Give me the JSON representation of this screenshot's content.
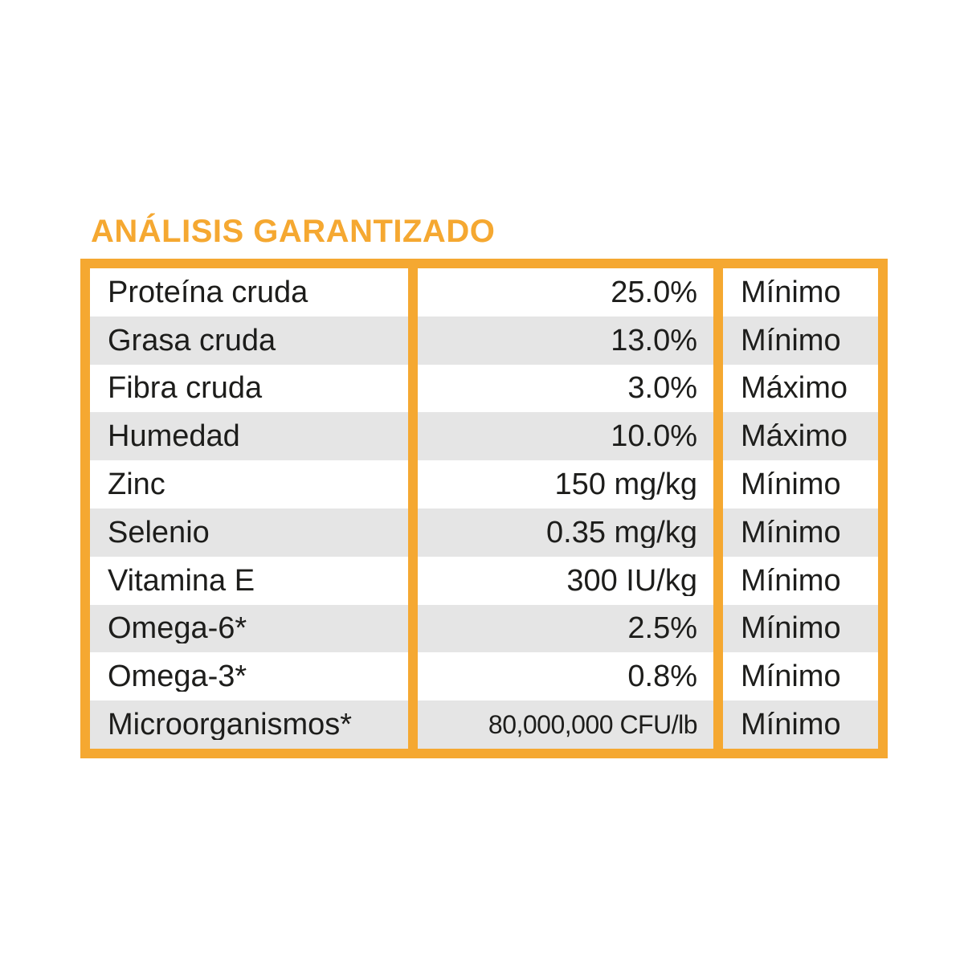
{
  "title": "ANÁLISIS GARANTIZADO",
  "colors": {
    "accent": "#F5A831",
    "row_alt": "#E5E5E5",
    "text": "#1D1D1B",
    "page_bg": "#FFFFFF"
  },
  "table": {
    "columns": [
      "nutrient",
      "value",
      "qualifier"
    ],
    "rows": [
      {
        "nutrient": "Proteína cruda",
        "value": "25.0%",
        "qualifier": "Mínimo"
      },
      {
        "nutrient": "Grasa cruda",
        "value": "13.0%",
        "qualifier": "Mínimo"
      },
      {
        "nutrient": "Fibra cruda",
        "value": "3.0%",
        "qualifier": "Máximo"
      },
      {
        "nutrient": "Humedad",
        "value": "10.0%",
        "qualifier": "Máximo"
      },
      {
        "nutrient": "Zinc",
        "value": "150 mg/kg",
        "qualifier": "Mínimo"
      },
      {
        "nutrient": "Selenio",
        "value": "0.35 mg/kg",
        "qualifier": "Mínimo"
      },
      {
        "nutrient": "Vitamina E",
        "value": "300 IU/kg",
        "qualifier": "Mínimo"
      },
      {
        "nutrient": "Omega-6*",
        "value": "2.5%",
        "qualifier": "Mínimo"
      },
      {
        "nutrient": "Omega-3*",
        "value": "0.8%",
        "qualifier": "Mínimo"
      },
      {
        "nutrient": "Microorganismos*",
        "value": "80,000,000 CFU/lb",
        "qualifier": "Mínimo"
      }
    ]
  }
}
